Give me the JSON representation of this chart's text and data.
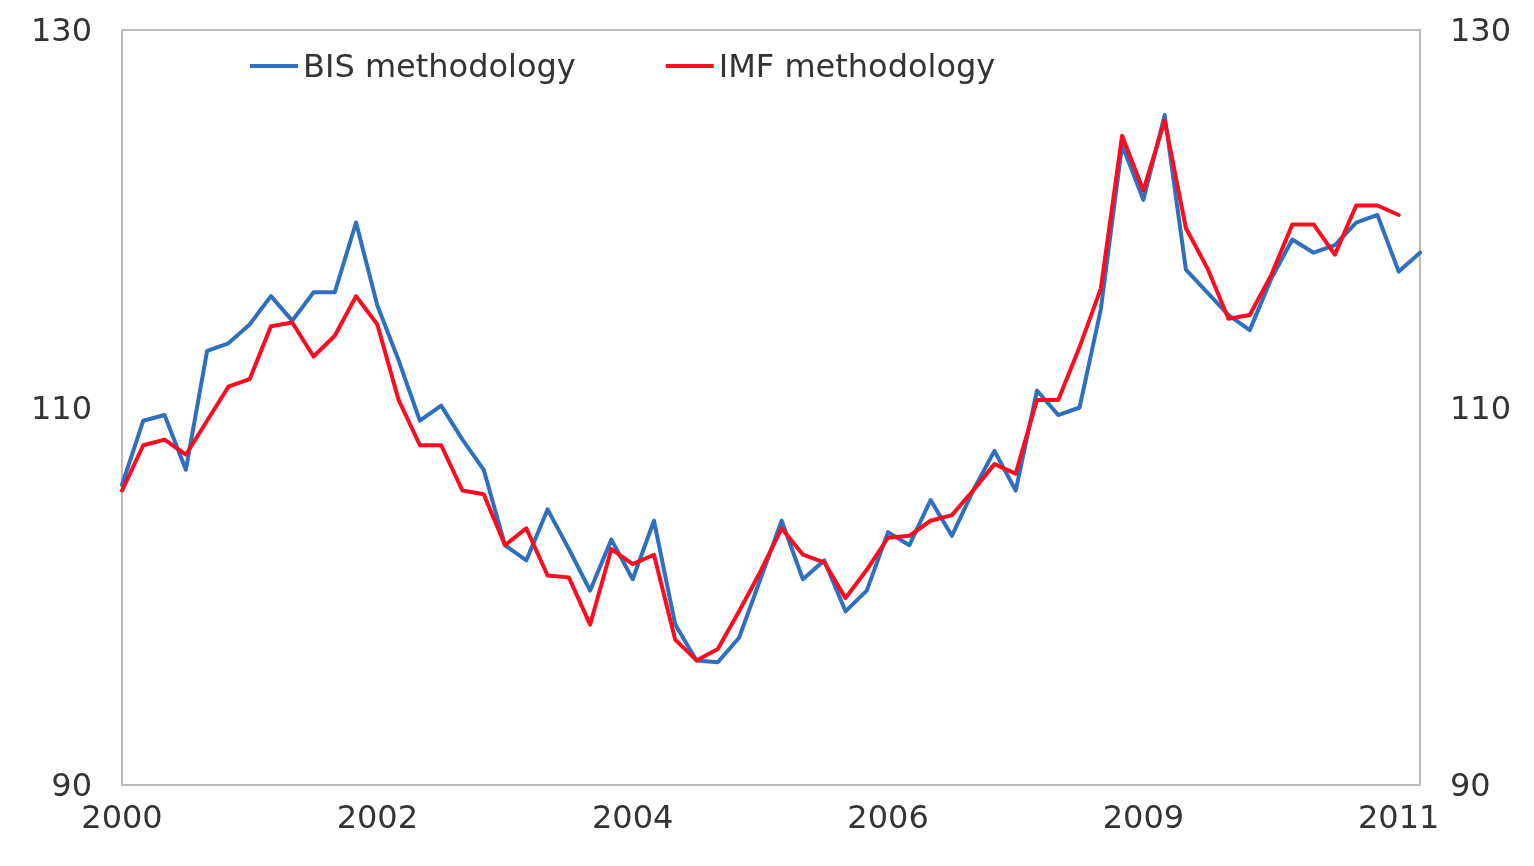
{
  "chart_data": {
    "type": "line",
    "categories": [
      "2000",
      null,
      null,
      null,
      null,
      null,
      null,
      null,
      null,
      null,
      null,
      null,
      "2002",
      null,
      null,
      null,
      null,
      null,
      null,
      null,
      null,
      null,
      null,
      null,
      "2004",
      null,
      null,
      null,
      null,
      null,
      null,
      null,
      null,
      null,
      null,
      null,
      "2006",
      null,
      null,
      null,
      null,
      null,
      null,
      null,
      null,
      null,
      null,
      null,
      "2009",
      null,
      null,
      null,
      null,
      null,
      null,
      null,
      null,
      null,
      null,
      null,
      "2011",
      null
    ],
    "series": [
      {
        "name": "BIS methodology",
        "color": "#2e6fbf",
        "values": [
          105.9,
          109.3,
          109.6,
          106.7,
          113.0,
          113.4,
          114.4,
          115.9,
          114.6,
          116.1,
          116.1,
          119.8,
          115.4,
          112.5,
          109.3,
          110.1,
          108.3,
          106.7,
          102.7,
          101.9,
          104.6,
          102.5,
          100.3,
          103.0,
          100.9,
          104.0,
          98.5,
          96.6,
          96.5,
          97.8,
          100.9,
          104.0,
          100.9,
          101.9,
          99.2,
          100.3,
          103.4,
          102.7,
          105.1,
          103.2,
          105.6,
          107.7,
          105.6,
          110.9,
          109.6,
          110.0,
          115.2,
          123.9,
          121.0,
          125.5,
          117.3,
          116.1,
          114.9,
          114.1,
          116.8,
          118.9,
          118.2,
          118.6,
          119.8,
          120.2,
          117.2,
          118.2
        ]
      },
      {
        "name": "IMF methodology",
        "color": "#ff0a1e",
        "values": [
          105.6,
          108.0,
          108.3,
          107.5,
          109.3,
          111.1,
          111.5,
          114.3,
          114.5,
          112.7,
          113.8,
          115.9,
          114.4,
          110.4,
          108.0,
          108.0,
          105.6,
          105.4,
          102.7,
          103.6,
          101.1,
          101.0,
          98.5,
          102.5,
          101.7,
          102.2,
          97.7,
          96.6,
          97.2,
          99.2,
          101.3,
          103.6,
          102.2,
          101.8,
          99.9,
          101.4,
          103.1,
          103.2,
          104.0,
          104.3,
          105.6,
          107.0,
          106.5,
          110.4,
          110.4,
          113.2,
          116.3,
          124.4,
          121.5,
          125.2,
          119.5,
          117.4,
          114.7,
          114.9,
          117.0,
          119.7,
          119.7,
          118.1,
          120.7,
          120.7,
          120.2,
          null
        ]
      }
    ],
    "ylim": [
      90,
      130
    ],
    "yticks": [
      90,
      110,
      130
    ],
    "y2lim": [
      90,
      130
    ],
    "y2ticks": [
      90,
      110,
      130
    ],
    "legend": "top left",
    "marker": "none",
    "line_style": "solid"
  }
}
